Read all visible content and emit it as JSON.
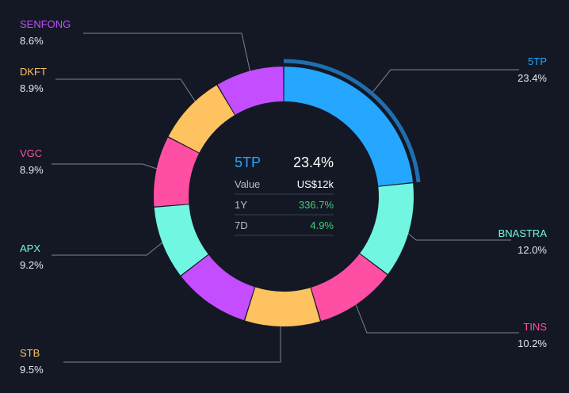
{
  "chart_data": {
    "type": "pie",
    "variant": "donut",
    "slices": [
      {
        "label": "5TP",
        "value": 23.4,
        "value_text": "23.4%",
        "color": "#25a6ff"
      },
      {
        "label": "BNASTRA",
        "value": 12.0,
        "value_text": "12.0%",
        "color": "#71f6e2"
      },
      {
        "label": "TINS",
        "value": 10.2,
        "value_text": "10.2%",
        "color": "#ff4fa4"
      },
      {
        "label": "STB",
        "value": 9.5,
        "value_text": "9.5%",
        "color": "#ffc260"
      },
      {
        "label": "",
        "value": 9.7,
        "value_text": "",
        "color": "#c44dff"
      },
      {
        "label": "APX",
        "value": 9.2,
        "value_text": "9.2%",
        "color": "#71f6e2"
      },
      {
        "label": "VGC",
        "value": 8.9,
        "value_text": "8.9%",
        "color": "#ff4fa4"
      },
      {
        "label": "DKFT",
        "value": 8.9,
        "value_text": "8.9%",
        "color": "#ffc260"
      },
      {
        "label": "SENFONG",
        "value": 8.6,
        "value_text": "8.6%",
        "color": "#c44dff"
      }
    ],
    "selected": "5TP",
    "highlight_color": "#1f6fb0"
  },
  "details": {
    "name": "5TP",
    "percent": "23.4%",
    "rows": [
      {
        "label": "Value",
        "value": "US$12k",
        "color": "#ffffff"
      },
      {
        "label": "1Y",
        "value": "336.7%",
        "color": "#3ed07a"
      },
      {
        "label": "7D",
        "value": "4.9%",
        "color": "#3ed07a"
      }
    ]
  }
}
